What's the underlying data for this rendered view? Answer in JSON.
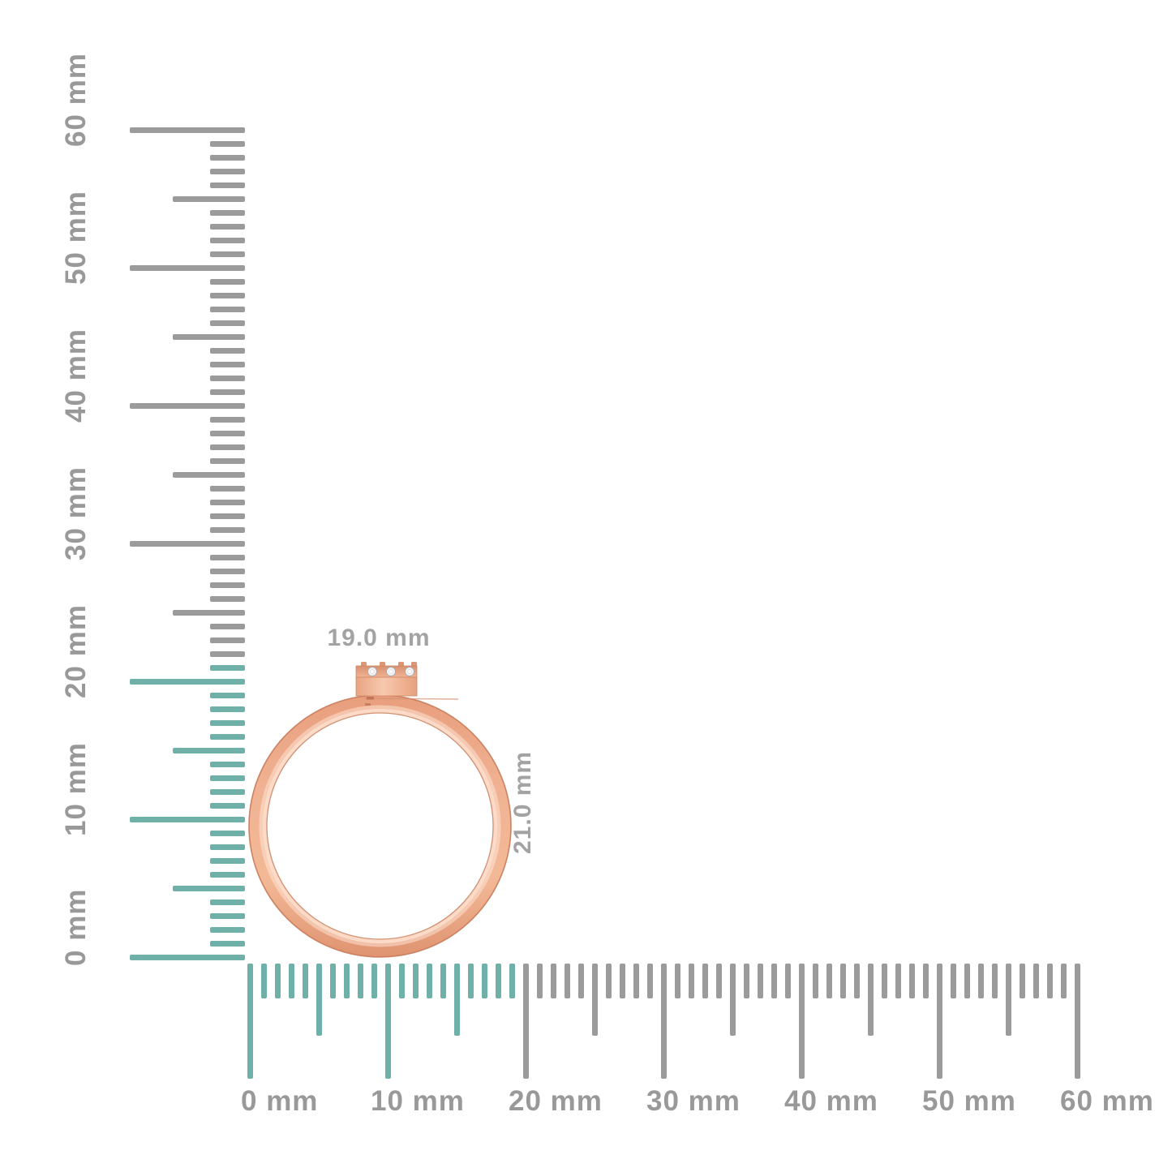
{
  "page": {
    "background": "#ffffff"
  },
  "product": {
    "name": "rose-gold-ring-side-view",
    "width_label": "19.0 mm",
    "height_label": "21.0 mm",
    "width_mm": 19.0,
    "height_mm": 21.0,
    "stone_count": 3,
    "colors": {
      "metal": "#f0b292",
      "metal_dark": "#cc7d5b",
      "metal_light": "#fcdcca",
      "stone": "#f3f3f5"
    }
  },
  "rulers": {
    "unit": "mm",
    "min_mm": 0,
    "max_mm": 60,
    "major_step_mm": 10,
    "half_step_mm": 5,
    "minor_step_mm": 1,
    "colors": {
      "default": "#9b9b9b",
      "highlight": "#6fb1a8",
      "label": "#999999",
      "dimension_label": "#a3a3a3"
    },
    "vertical": {
      "highlight_until_mm": 21,
      "labels": [
        "0 mm",
        "10 mm",
        "20 mm",
        "30 mm",
        "40 mm",
        "50 mm",
        "60 mm"
      ]
    },
    "horizontal": {
      "highlight_until_mm": 19,
      "labels": [
        "0 mm",
        "10 mm",
        "20 mm",
        "30 mm",
        "40 mm",
        "50 mm",
        "60 mm"
      ]
    }
  }
}
